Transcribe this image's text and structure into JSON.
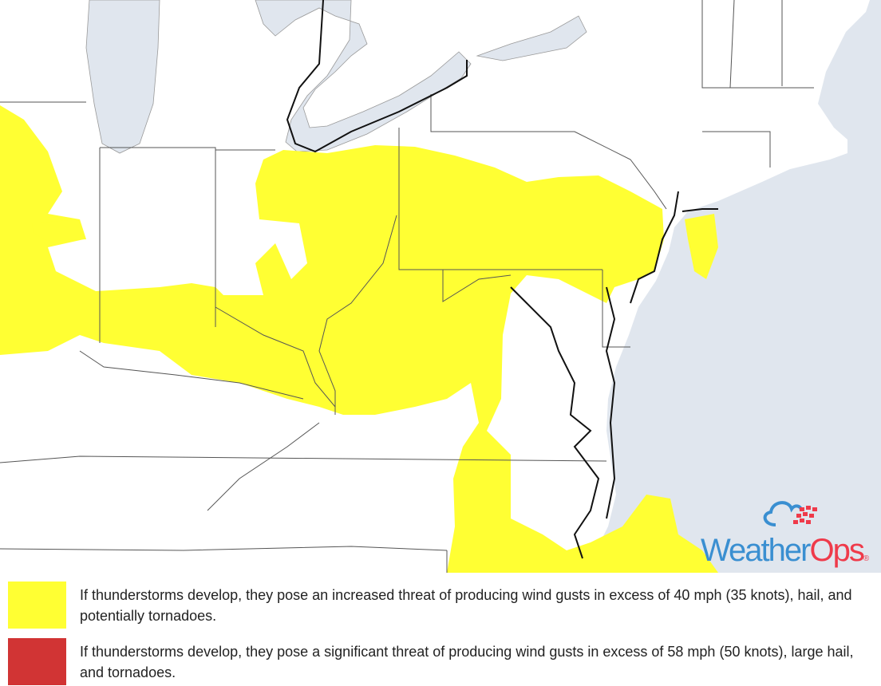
{
  "colors": {
    "ocean": "#e0e6ee",
    "land": "#ffffff",
    "threat_increased": "#ffff33",
    "threat_significant": "#d13434",
    "borders": "#555555",
    "coast": "#111111",
    "logo_blue": "#3a8fd1",
    "logo_red": "#ef3a4a"
  },
  "logo": {
    "part1": "Weather",
    "part2": "Ops",
    "mark": "®"
  },
  "legend": [
    {
      "level": "increased",
      "color": "#ffff33",
      "text": "If thunderstorms develop, they pose an increased threat of producing wind gusts in excess of 40 mph (35 knots), hail, and potentially tornadoes."
    },
    {
      "level": "significant",
      "color": "#d13434",
      "text": "If thunderstorms develop, they pose a significant threat of producing wind gusts in excess of 58 mph (50 knots), large hail, and tornadoes."
    }
  ]
}
